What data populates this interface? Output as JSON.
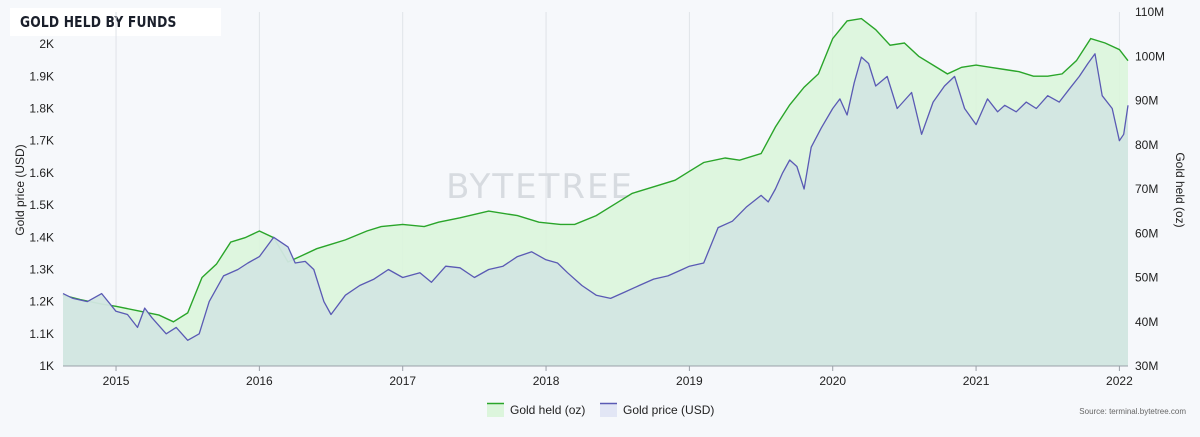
{
  "title": "GOLD HELD BY FUNDS",
  "source": "Source: terminal.bytetree.com",
  "watermark": "BYTETREE",
  "colors": {
    "gold_held_line": "#2aa52a",
    "gold_held_fill": "#dcf5dc",
    "gold_price_line": "#5a5ab4",
    "gold_price_fill": "#d2e6e1",
    "grid": "#dfe3e8"
  },
  "chart_data": {
    "type": "line",
    "title": "GOLD HELD BY FUNDS",
    "xlabel": "",
    "ylabel_left": "Gold price (USD)",
    "ylabel_right": "Gold held (oz)",
    "x_ticks": [
      "2015",
      "2016",
      "2017",
      "2018",
      "2019",
      "2020",
      "2021",
      "2022"
    ],
    "x_range": [
      2014.63,
      2022.06
    ],
    "y_left_ticks": [
      "1K",
      "1.1K",
      "1.2K",
      "1.3K",
      "1.4K",
      "1.5K",
      "1.6K",
      "1.7K",
      "1.8K",
      "1.9K",
      "2K"
    ],
    "y_left_range": [
      1000,
      2100
    ],
    "y_right_ticks": [
      "30M",
      "40M",
      "50M",
      "60M",
      "70M",
      "80M",
      "90M",
      "100M",
      "110M"
    ],
    "y_right_range": [
      30000000,
      110000000
    ],
    "grid": "vertical",
    "legend_position": "bottom-center",
    "series": [
      {
        "name": "Gold held (oz)",
        "axis": "right",
        "x": [
          2014.63,
          2014.75,
          2014.9,
          2015.0,
          2015.15,
          2015.3,
          2015.4,
          2015.5,
          2015.6,
          2015.7,
          2015.8,
          2015.9,
          2016.0,
          2016.1,
          2016.2,
          2016.3,
          2016.4,
          2016.5,
          2016.6,
          2016.75,
          2016.85,
          2017.0,
          2017.15,
          2017.25,
          2017.4,
          2017.6,
          2017.8,
          2017.95,
          2018.1,
          2018.2,
          2018.35,
          2018.5,
          2018.6,
          2018.75,
          2018.9,
          2019.0,
          2019.1,
          2019.25,
          2019.35,
          2019.5,
          2019.6,
          2019.7,
          2019.8,
          2019.9,
          2020.0,
          2020.1,
          2020.2,
          2020.3,
          2020.4,
          2020.5,
          2020.6,
          2020.7,
          2020.8,
          2020.9,
          2021.0,
          2021.1,
          2021.2,
          2021.3,
          2021.4,
          2021.5,
          2021.6,
          2021.7,
          2021.8,
          2021.9,
          2022.0,
          2022.06
        ],
        "values": [
          46000000,
          45000000,
          44000000,
          43500000,
          42500000,
          41500000,
          40000000,
          42000000,
          50000000,
          53000000,
          58000000,
          59000000,
          60500000,
          59000000,
          53500000,
          55000000,
          56500000,
          57500000,
          58500000,
          60500000,
          61500000,
          62000000,
          61500000,
          62500000,
          63500000,
          65000000,
          64000000,
          62500000,
          62000000,
          62000000,
          64000000,
          67000000,
          69000000,
          70500000,
          72000000,
          74000000,
          76000000,
          77000000,
          76500000,
          78000000,
          84000000,
          89000000,
          93000000,
          96000000,
          104000000,
          108000000,
          108500000,
          106000000,
          102500000,
          103000000,
          100000000,
          98000000,
          96000000,
          97500000,
          98000000,
          97500000,
          97000000,
          96500000,
          95500000,
          95500000,
          96000000,
          99000000,
          104000000,
          103000000,
          101500000,
          99000000
        ]
      },
      {
        "name": "Gold price (USD)",
        "axis": "left",
        "x": [
          2014.63,
          2014.7,
          2014.8,
          2014.9,
          2015.0,
          2015.08,
          2015.15,
          2015.2,
          2015.25,
          2015.35,
          2015.42,
          2015.5,
          2015.58,
          2015.65,
          2015.75,
          2015.85,
          2015.92,
          2016.0,
          2016.1,
          2016.2,
          2016.25,
          2016.32,
          2016.38,
          2016.45,
          2016.5,
          2016.6,
          2016.7,
          2016.8,
          2016.9,
          2017.0,
          2017.12,
          2017.2,
          2017.3,
          2017.4,
          2017.5,
          2017.6,
          2017.7,
          2017.8,
          2017.9,
          2018.0,
          2018.08,
          2018.15,
          2018.25,
          2018.35,
          2018.45,
          2018.55,
          2018.65,
          2018.75,
          2018.85,
          2018.95,
          2019.0,
          2019.1,
          2019.2,
          2019.3,
          2019.4,
          2019.5,
          2019.55,
          2019.6,
          2019.65,
          2019.7,
          2019.75,
          2019.8,
          2019.85,
          2019.92,
          2020.0,
          2020.05,
          2020.1,
          2020.15,
          2020.2,
          2020.25,
          2020.3,
          2020.38,
          2020.45,
          2020.55,
          2020.62,
          2020.7,
          2020.78,
          2020.85,
          2020.92,
          2021.0,
          2021.08,
          2021.15,
          2021.2,
          2021.28,
          2021.35,
          2021.42,
          2021.5,
          2021.58,
          2021.65,
          2021.72,
          2021.78,
          2021.83,
          2021.88,
          2021.95,
          2022.0,
          2022.03,
          2022.06
        ],
        "values": [
          1225,
          1210,
          1200,
          1225,
          1170,
          1160,
          1120,
          1180,
          1150,
          1100,
          1120,
          1080,
          1100,
          1200,
          1280,
          1300,
          1320,
          1340,
          1400,
          1370,
          1320,
          1325,
          1300,
          1200,
          1160,
          1220,
          1250,
          1270,
          1300,
          1275,
          1290,
          1260,
          1310,
          1305,
          1275,
          1300,
          1310,
          1340,
          1355,
          1330,
          1320,
          1290,
          1250,
          1220,
          1210,
          1230,
          1250,
          1270,
          1280,
          1300,
          1310,
          1320,
          1430,
          1450,
          1495,
          1530,
          1510,
          1550,
          1600,
          1640,
          1620,
          1550,
          1680,
          1740,
          1800,
          1830,
          1780,
          1880,
          1960,
          1940,
          1870,
          1900,
          1800,
          1850,
          1720,
          1820,
          1870,
          1900,
          1800,
          1750,
          1830,
          1790,
          1810,
          1790,
          1820,
          1800,
          1840,
          1820,
          1860,
          1900,
          1940,
          1970,
          1840,
          1800,
          1700,
          1720,
          1810
        ]
      }
    ]
  }
}
